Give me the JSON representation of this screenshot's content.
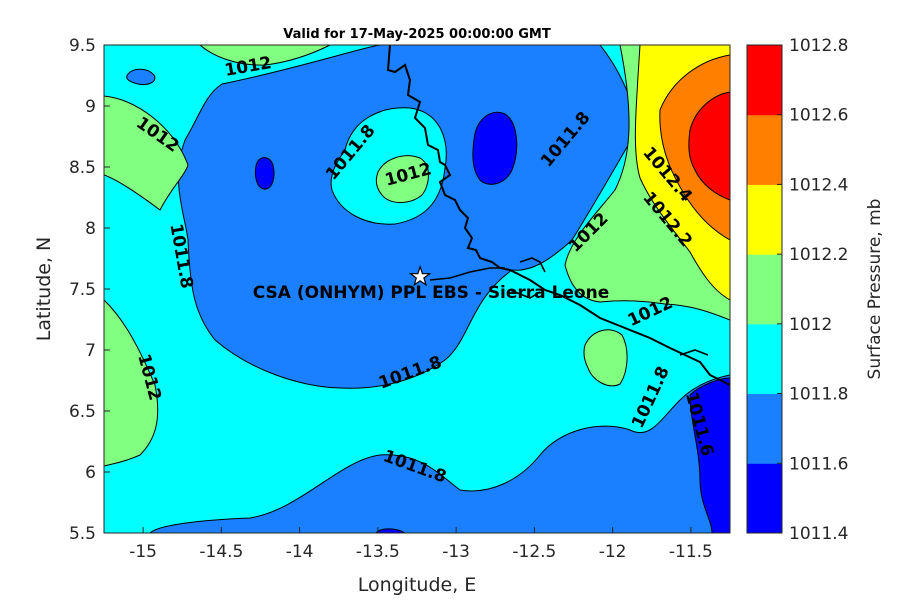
{
  "title": "Valid for 17-May-2025 00:00:00 GMT",
  "xlabel": "Longitude, E",
  "ylabel": "Latitude, N",
  "colorbar_label": "Surface Pressure, mb",
  "site_label": "CSA (ONHYM) PPL EBS  - Sierra Leone",
  "site": {
    "lon": -13.23,
    "lat": 7.6
  },
  "x_ticks": [
    "-15",
    "-14.5",
    "-14",
    "-13.5",
    "-13",
    "-12.5",
    "-12",
    "-11.5"
  ],
  "y_ticks": [
    "9.5",
    "9",
    "8.5",
    "8",
    "7.5",
    "7",
    "6.5",
    "6",
    "5.5"
  ],
  "colorbar_ticks": [
    "1012.8",
    "1012.6",
    "1012.4",
    "1012.2",
    "1012",
    "1011.8",
    "1011.6",
    "1011.4"
  ],
  "colors": {
    "1011.4": "#0000ff",
    "1011.6": "#1a80ff",
    "1011.8": "#00ffff",
    "1012.0": "#80ff80",
    "1012.2": "#ffff00",
    "1012.4": "#ff8000",
    "1012.6": "#ff0000",
    "1012.8": "#800000"
  },
  "contour_labels": [
    {
      "text": "1012"
    },
    {
      "text": "1012"
    },
    {
      "text": "1011.8"
    },
    {
      "text": "1012"
    },
    {
      "text": "1011.8"
    },
    {
      "text": "1012"
    },
    {
      "text": "1012.4"
    },
    {
      "text": "1012.2"
    },
    {
      "text": "1011.8"
    },
    {
      "text": "1012"
    },
    {
      "text": "1012"
    },
    {
      "text": "1011.8"
    },
    {
      "text": "1011.8"
    },
    {
      "text": "1011.8"
    },
    {
      "text": "1011.6"
    }
  ],
  "chart_data": {
    "type": "heatmap",
    "title": "Valid for 17-May-2025 00:00:00 GMT",
    "xlabel": "Longitude, E",
    "ylabel": "Latitude, N",
    "xlim": [
      -15.25,
      -11.25
    ],
    "ylim": [
      5.5,
      9.5
    ],
    "colorbar": {
      "label": "Surface Pressure, mb",
      "min": 1011.4,
      "max": 1012.8,
      "step": 0.2
    },
    "contour_levels": [
      1011.6,
      1011.8,
      1012.0,
      1012.2,
      1012.4
    ]
  }
}
